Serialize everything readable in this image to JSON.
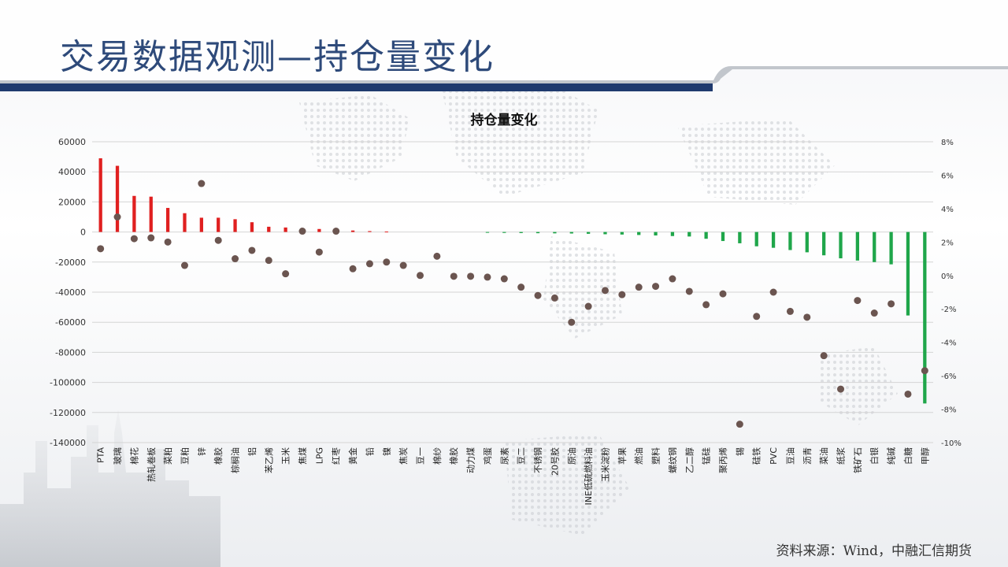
{
  "header": {
    "title": "交易数据观测—持仓量变化"
  },
  "footer": {
    "source": "资料来源：Wind，中融汇信期货"
  },
  "colors": {
    "title_text": "#2e4a7a",
    "header_stripe": "#1f3a6e",
    "bar_positive": "#e02020",
    "bar_negative": "#1fa64a",
    "dot": "#6b5550"
  },
  "chart_data": {
    "type": "bar",
    "title": "持仓量变化",
    "left_axis": {
      "ylim": [
        -140000,
        60000
      ],
      "ticks": [
        60000,
        40000,
        20000,
        0,
        -20000,
        -40000,
        -60000,
        -80000,
        -100000,
        -120000,
        -140000
      ]
    },
    "right_axis": {
      "ylim": [
        -10,
        8
      ],
      "ticks": [
        "8%",
        "6%",
        "4%",
        "2%",
        "0%",
        "-2%",
        "-4%",
        "-6%",
        "-8%",
        "-10%"
      ]
    },
    "grid": true,
    "legend": "none",
    "categories": [
      "PTA",
      "玻璃",
      "棉花",
      "热轧卷板",
      "菜粕",
      "豆粕",
      "锌",
      "橡胶",
      "棕榈油",
      "铝",
      "苯乙烯",
      "玉米",
      "焦煤",
      "LPG",
      "红枣",
      "黄金",
      "铅",
      "镍",
      "焦炭",
      "豆一",
      "棉纱",
      "橡胶",
      "动力煤",
      "鸡蛋",
      "尿素",
      "豆二",
      "不锈钢",
      "20号胶",
      "原油",
      "INE低硫燃料油",
      "玉米淀粉",
      "苹果",
      "燃油",
      "塑料",
      "螺纹钢",
      "乙二醇",
      "锰硅",
      "聚丙烯",
      "锡",
      "硅铁",
      "PVC",
      "豆油",
      "沥青",
      "菜油",
      "纸浆",
      "铁矿石",
      "白银",
      "纯碱",
      "白糖",
      "甲醇"
    ],
    "series": [
      {
        "type": "bar",
        "axis": "left",
        "values": [
          49000,
          44000,
          24000,
          23500,
          16000,
          12500,
          9500,
          9500,
          8500,
          6500,
          3500,
          3000,
          2500,
          2000,
          1500,
          1000,
          600,
          300,
          0,
          0,
          0,
          0,
          0,
          -500,
          -600,
          -700,
          -800,
          -900,
          -1000,
          -1200,
          -1500,
          -1700,
          -2000,
          -2300,
          -2700,
          -3000,
          -4500,
          -6000,
          -7500,
          -9500,
          -10500,
          -12000,
          -13500,
          -15500,
          -17500,
          -19000,
          -20000,
          -21500,
          -55500,
          -114000
        ]
      },
      {
        "type": "scatter",
        "axis": "right",
        "values": [
          1.6,
          3.5,
          2.2,
          2.25,
          2.0,
          0.6,
          5.5,
          2.1,
          1.0,
          1.5,
          0.9,
          0.1,
          2.65,
          1.4,
          2.65,
          0.4,
          0.7,
          0.8,
          0.6,
          0.0,
          1.15,
          -0.05,
          -0.05,
          -0.1,
          -0.2,
          -0.7,
          -1.2,
          -1.35,
          -2.8,
          -1.85,
          -0.9,
          -1.15,
          -0.7,
          -0.65,
          -0.2,
          -0.95,
          -1.75,
          -1.1,
          -8.9,
          -2.45,
          -1.0,
          -2.15,
          -2.5,
          -4.8,
          -6.8,
          -1.5,
          -2.25,
          -1.7,
          -7.1,
          -5.7
        ]
      }
    ]
  }
}
